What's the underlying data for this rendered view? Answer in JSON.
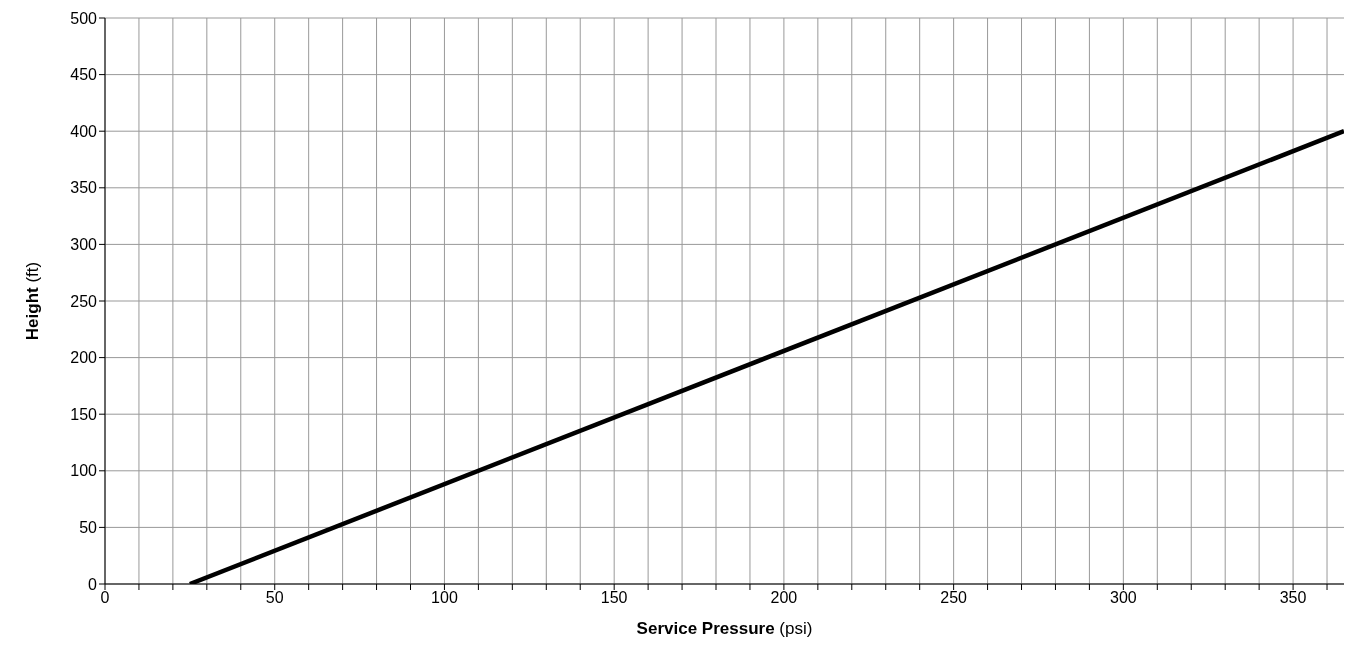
{
  "chart_data": {
    "type": "line",
    "xlabel": "Service Pressure (psi)",
    "ylabel": "Height (ft)",
    "series": [
      {
        "color": "#000000",
        "x": [
          25,
          365
        ],
        "values": [
          0,
          400
        ]
      }
    ],
    "xlim": [
      0,
      365
    ],
    "ylim": [
      0,
      500
    ],
    "xticks": [
      0,
      {
        "value": 10,
        "label": null
      },
      {
        "value": 20,
        "label": null
      },
      {
        "value": 30,
        "label": null
      },
      {
        "value": 40,
        "label": null
      },
      50,
      {
        "value": 60,
        "label": null
      },
      {
        "value": 70,
        "label": null
      },
      {
        "value": 80,
        "label": null
      },
      {
        "value": 90,
        "label": null
      },
      100,
      {
        "value": 110,
        "label": null
      },
      {
        "value": 120,
        "label": null
      },
      {
        "value": 130,
        "label": null
      },
      {
        "value": 140,
        "label": null
      },
      150,
      {
        "value": 160,
        "label": null
      },
      {
        "value": 170,
        "label": null
      },
      {
        "value": 180,
        "label": null
      },
      {
        "value": 190,
        "label": null
      },
      200,
      {
        "value": 210,
        "label": null
      },
      {
        "value": 220,
        "label": null
      },
      {
        "value": 230,
        "label": null
      },
      {
        "value": 240,
        "label": null
      },
      250,
      {
        "value": 260,
        "label": null
      },
      {
        "value": 270,
        "label": null
      },
      {
        "value": 280,
        "label": null
      },
      {
        "value": 290,
        "label": null
      },
      300,
      {
        "value": 310,
        "label": null
      },
      {
        "value": 320,
        "label": null
      },
      {
        "value": 330,
        "label": null
      },
      {
        "value": 340,
        "label": null
      },
      350,
      {
        "value": 360,
        "label": null
      }
    ],
    "yticks": [
      0,
      50,
      100,
      150,
      200,
      250,
      300,
      350,
      400,
      450,
      500
    ],
    "grid": true,
    "legend": false,
    "marker": "none",
    "line_style": "solid"
  }
}
